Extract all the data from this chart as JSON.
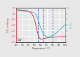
{
  "title": "",
  "xlabel": "Temperature (°C)",
  "ylabel_left": "DSC (mW/mg)",
  "ylabel_right": "TG (%)",
  "xlim": [
    200,
    1000
  ],
  "ylim_left": [
    -2.5,
    0.5
  ],
  "ylim_right": [
    84,
    102
  ],
  "bg_color": "#e8e8e8",
  "grid_color": "#ffffff",
  "dsc_color": "#d04050",
  "tg_color": "#50b8c8",
  "marker_color": "#4060d0",
  "legend_dsc": "DSC",
  "legend_tg": "TG",
  "dsc_x": [
    200,
    280,
    340,
    380,
    420,
    450,
    480,
    500,
    520,
    540,
    560,
    580,
    600,
    620,
    640,
    660,
    700,
    750,
    800,
    900,
    1000
  ],
  "dsc_y": [
    0.32,
    0.3,
    0.28,
    0.22,
    0.12,
    0.0,
    -0.25,
    -0.55,
    -1.0,
    -1.5,
    -1.9,
    -2.15,
    -2.25,
    -2.28,
    -2.25,
    -2.2,
    -2.15,
    -2.1,
    -2.08,
    -2.05,
    -2.02
  ],
  "tg_x": [
    200,
    300,
    400,
    450,
    500,
    520,
    540,
    560,
    580,
    600,
    640,
    680,
    720,
    760,
    800,
    850,
    900,
    950,
    1000
  ],
  "tg_y": [
    100.5,
    100.3,
    100.0,
    99.8,
    99.2,
    98.5,
    97.2,
    95.5,
    93.5,
    91.5,
    88.5,
    87.0,
    86.5,
    86.8,
    87.5,
    88.5,
    90.0,
    91.5,
    93.0
  ],
  "vline_x1": 560,
  "vline_x2": 640,
  "vline_x3": 800,
  "yticks_left_vals": [
    0.5,
    0.0,
    -0.5,
    -1.0,
    -1.5,
    -2.0,
    -2.5
  ],
  "yticks_right_vals": [
    84,
    87,
    90,
    93,
    96,
    99,
    102
  ],
  "xtick_spacing": 100,
  "ytick_left_spacing": 0.5,
  "ytick_right_spacing": 3
}
